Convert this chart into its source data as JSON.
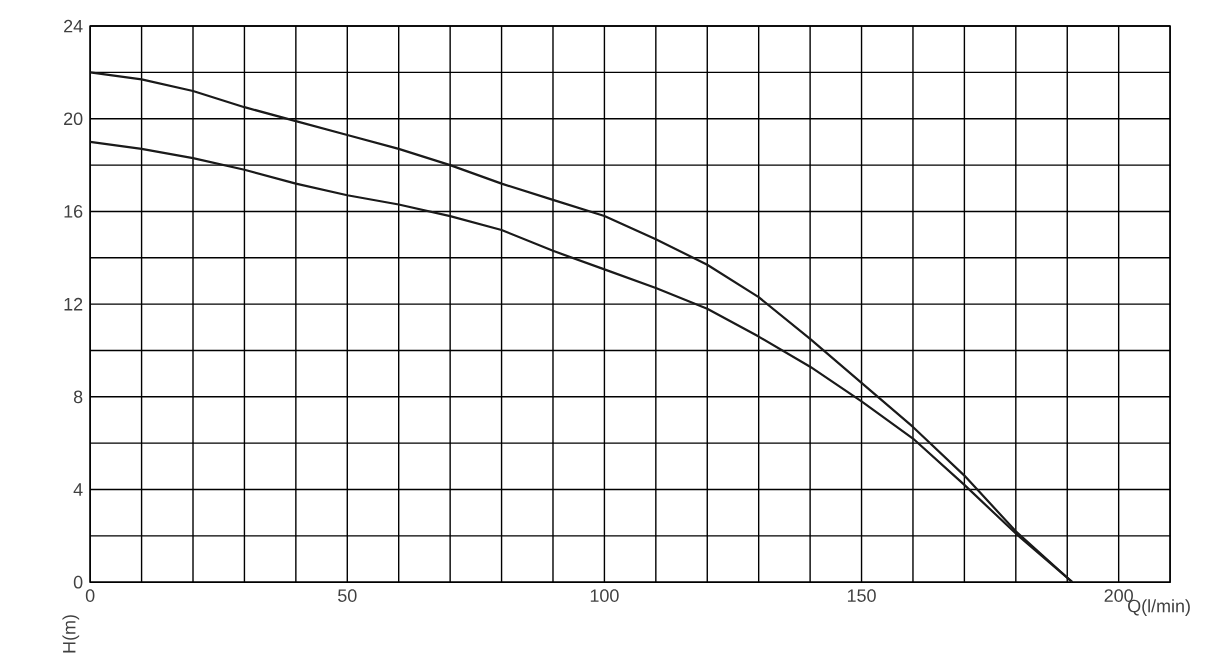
{
  "chart_data": {
    "type": "line",
    "xlabel": "Q(l/min)",
    "ylabel": "H(m)",
    "xlim": [
      0,
      210
    ],
    "ylim": [
      0,
      24
    ],
    "xticks": [
      0,
      {
        "value": 10,
        "label": null
      },
      {
        "value": 20,
        "label": null
      },
      {
        "value": 30,
        "label": null
      },
      {
        "value": 40,
        "label": null
      },
      50,
      {
        "value": 60,
        "label": null
      },
      {
        "value": 70,
        "label": null
      },
      {
        "value": 80,
        "label": null
      },
      {
        "value": 90,
        "label": null
      },
      100,
      {
        "value": 110,
        "label": null
      },
      {
        "value": 120,
        "label": null
      },
      {
        "value": 130,
        "label": null
      },
      {
        "value": 140,
        "label": null
      },
      150,
      {
        "value": 160,
        "label": null
      },
      {
        "value": 170,
        "label": null
      },
      {
        "value": 180,
        "label": null
      },
      {
        "value": 190,
        "label": null
      },
      200,
      {
        "value": 210,
        "label": null
      }
    ],
    "yticks": [
      0,
      {
        "value": 2,
        "label": null
      },
      4,
      {
        "value": 6,
        "label": null
      },
      8,
      {
        "value": 10,
        "label": null
      },
      12,
      {
        "value": 14,
        "label": null
      },
      16,
      {
        "value": 18,
        "label": null
      },
      20,
      {
        "value": 22,
        "label": null
      },
      24
    ],
    "grid": true,
    "marker": "none",
    "line_style": "solid",
    "series": [
      {
        "color": "#1a1a1a",
        "x": [
          0,
          10,
          20,
          30,
          40,
          50,
          60,
          70,
          80,
          90,
          100,
          110,
          120,
          130,
          140,
          150,
          160,
          170,
          180,
          191
        ],
        "values": [
          22,
          21.7,
          21.2,
          20.5,
          19.9,
          19.3,
          18.7,
          18,
          17.2,
          16.5,
          15.8,
          14.8,
          13.7,
          12.3,
          10.5,
          8.6,
          6.7,
          4.6,
          2.2,
          0
        ]
      },
      {
        "color": "#1a1a1a",
        "x": [
          0,
          10,
          20,
          30,
          40,
          50,
          60,
          70,
          80,
          90,
          100,
          110,
          120,
          130,
          140,
          150,
          160,
          170,
          180,
          191
        ],
        "values": [
          19,
          18.7,
          18.3,
          17.8,
          17.2,
          16.7,
          16.3,
          15.8,
          15.2,
          14.3,
          13.5,
          12.7,
          11.8,
          10.6,
          9.3,
          7.8,
          6.2,
          4.2,
          2.1,
          0
        ]
      }
    ]
  }
}
